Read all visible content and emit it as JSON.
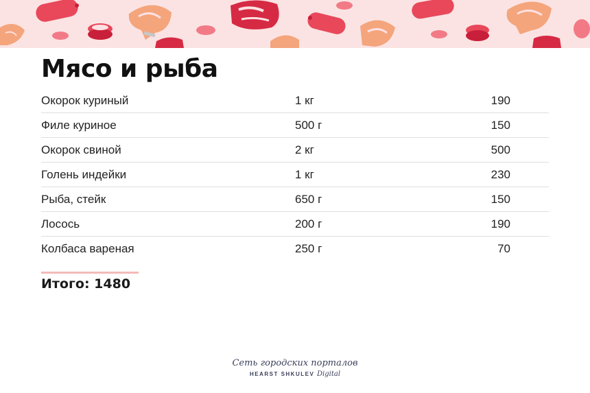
{
  "banner": {
    "colors": {
      "background": "#fbe3e3",
      "salmon": "#f4a57c",
      "meat": "#e8485a",
      "dark_meat": "#c8203a",
      "fat": "#fde0e2",
      "bone": "#c7c7c7"
    }
  },
  "title": "Мясо и рыба",
  "items": [
    {
      "name": "Окорок куриный",
      "qty": "1 кг",
      "price": "190"
    },
    {
      "name": "Филе куриное",
      "qty": "500 г",
      "price": "150"
    },
    {
      "name": "Окорок свиной",
      "qty": "2 кг",
      "price": "500"
    },
    {
      "name": "Голень индейки",
      "qty": "1 кг",
      "price": "230"
    },
    {
      "name": "Рыба, стейк",
      "qty": "650 г",
      "price": "150"
    },
    {
      "name": "Лосось",
      "qty": "200 г",
      "price": "190"
    },
    {
      "name": "Колбаса вареная",
      "qty": "250 г",
      "price": "70"
    }
  ],
  "total": "Итого: 1480",
  "footer": {
    "line1": "Сеть городских порталов",
    "line2_brand": "HEARST SHKULEV",
    "line2_suffix": "Digital"
  }
}
